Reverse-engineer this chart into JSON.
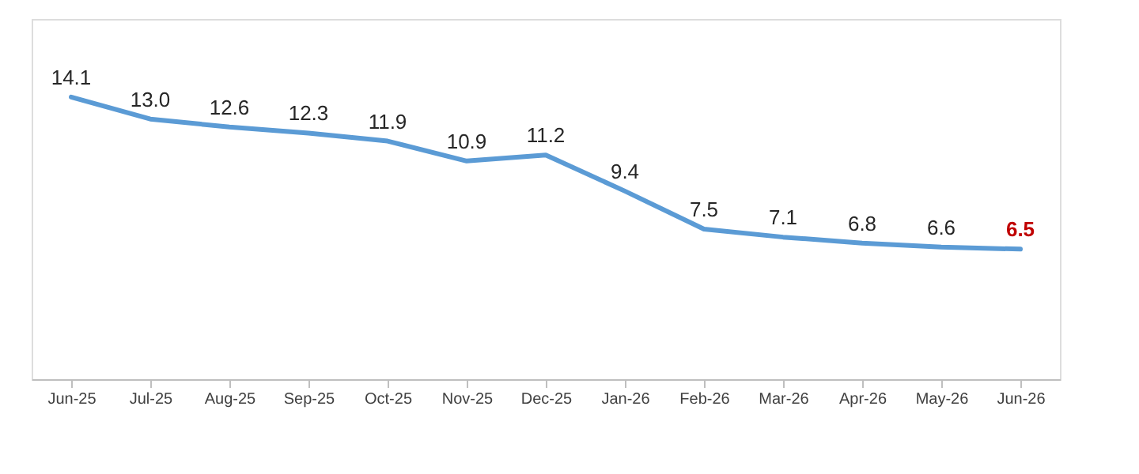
{
  "chart_data": {
    "type": "line",
    "categories": [
      "Jun-25",
      "Jul-25",
      "Aug-25",
      "Sep-25",
      "Oct-25",
      "Nov-25",
      "Dec-25",
      "Jan-26",
      "Feb-26",
      "Mar-26",
      "Apr-26",
      "May-26",
      "Jun-26"
    ],
    "series": [
      {
        "color": "#5b9bd5",
        "values": [
          14.1,
          13.0,
          12.6,
          12.3,
          11.9,
          10.9,
          11.2,
          9.4,
          7.5,
          7.1,
          6.8,
          6.6,
          6.5
        ],
        "value_labels": [
          "14.1",
          "13.0",
          "12.6",
          "12.3",
          "11.9",
          "10.9",
          "11.2",
          "9.4",
          "7.5",
          "7.1",
          "6.8",
          "6.6",
          "6.5"
        ]
      }
    ],
    "ylim": [
      0,
      18
    ],
    "tick_labels": "x",
    "grid": false,
    "marker": "none",
    "line_style": "solid"
  }
}
